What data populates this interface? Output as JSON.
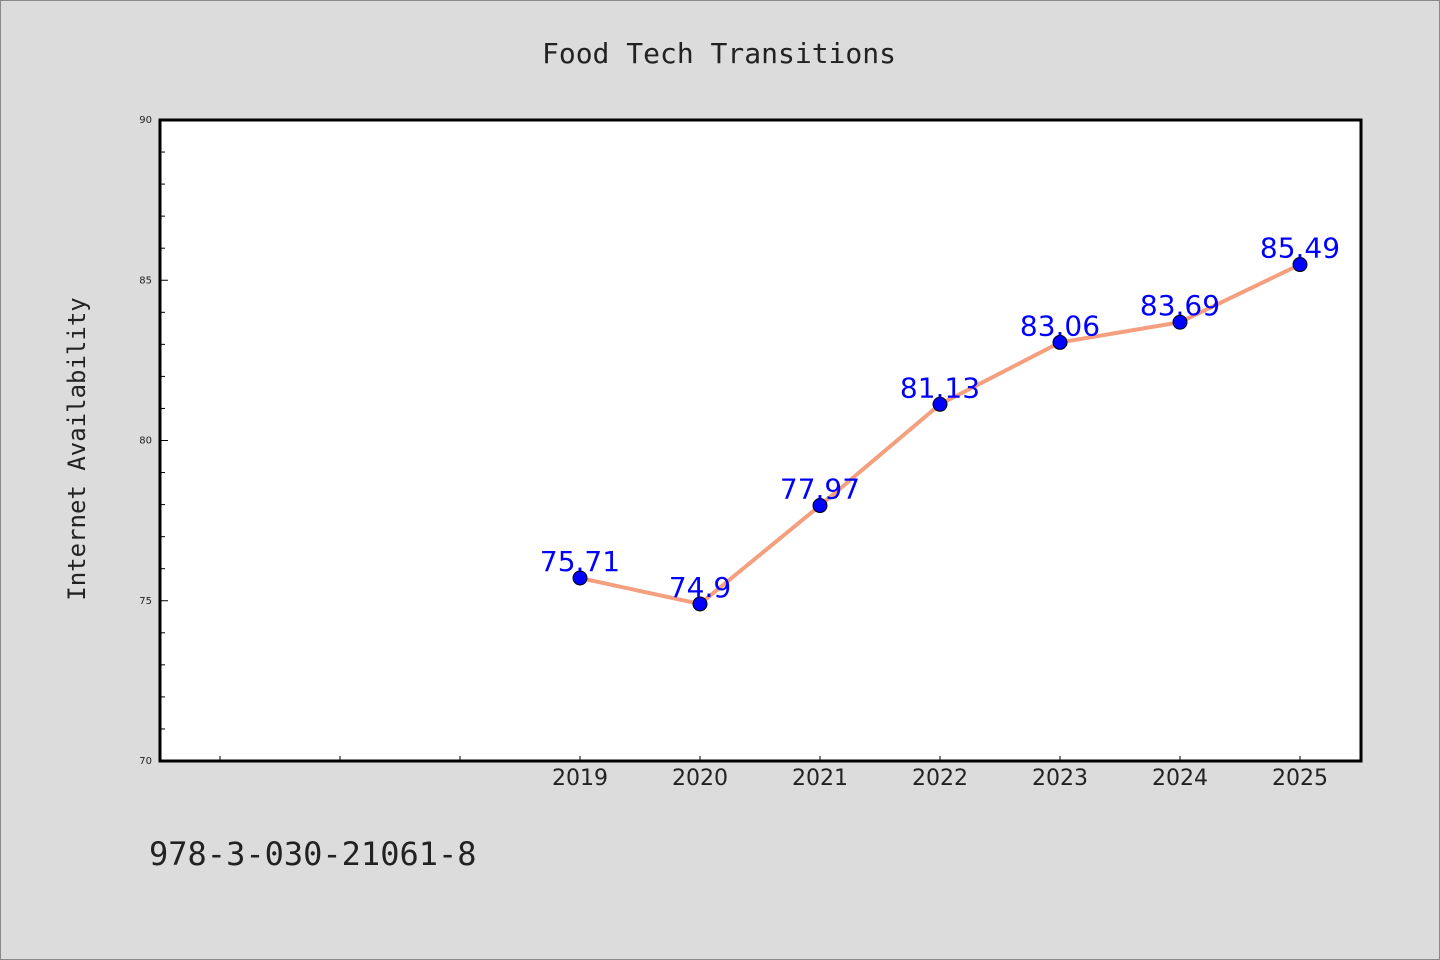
{
  "colors": {
    "background": "#dcdcdc",
    "plot_area": "#ffffff",
    "line": "#f4a07e",
    "marker": "#0000ff",
    "data_label": "#0000ff",
    "text": "#222222"
  },
  "chart_data": {
    "type": "line",
    "title": "Food Tech Transitions",
    "xlabel": "",
    "ylabel": "Internet Availability",
    "x": [
      "2019",
      "2020",
      "2021",
      "2022",
      "2023",
      "2024",
      "2025"
    ],
    "series": [
      {
        "values": [
          75.71,
          74.9,
          77.97,
          81.13,
          83.06,
          83.69,
          85.49
        ],
        "labels": [
          "75.71",
          "74.9",
          "77.97",
          "81.13",
          "83.06",
          "83.69",
          "85.49"
        ]
      }
    ],
    "ylim": [
      70,
      90
    ],
    "y_ticks": [
      "70",
      "75",
      "80",
      "85",
      "90"
    ],
    "grid": false,
    "legend": "none"
  },
  "footer_text": "978-3-030-21061-8"
}
